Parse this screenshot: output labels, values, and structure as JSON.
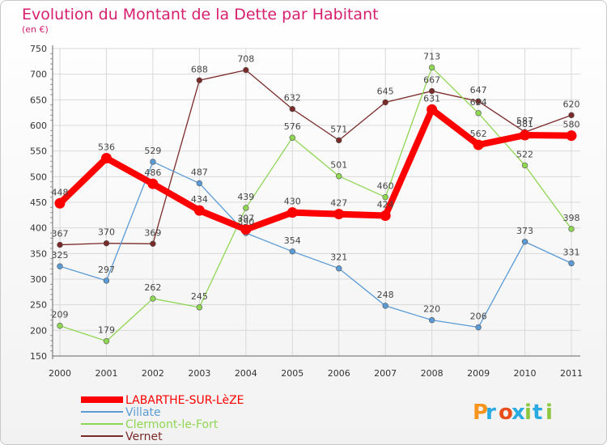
{
  "chart_data": {
    "type": "line",
    "title": "Evolution du Montant de la Dette par Habitant",
    "subtitle": "(en €)",
    "categories": [
      "2000",
      "2001",
      "2002",
      "2003",
      "2004",
      "2005",
      "2006",
      "2007",
      "2008",
      "2009",
      "2010",
      "2011"
    ],
    "ylim": [
      150,
      750
    ],
    "yticks": [
      150,
      200,
      250,
      300,
      350,
      400,
      450,
      500,
      550,
      600,
      650,
      700,
      750
    ],
    "grid": true,
    "legend_position": "bottom-left",
    "series": [
      {
        "name": "LABARTHE-SUR-LèZE",
        "color": "#ff0000",
        "values": [
          448,
          536,
          486,
          434,
          397,
          430,
          427,
          424,
          631,
          562,
          581,
          580
        ]
      },
      {
        "name": "Villate",
        "color": "#5b9bd5",
        "values": [
          325,
          297,
          529,
          487,
          390,
          354,
          321,
          248,
          220,
          206,
          373,
          331
        ]
      },
      {
        "name": "Clermont-le-Fort",
        "color": "#8fd653",
        "values": [
          209,
          179,
          262,
          245,
          439,
          576,
          501,
          460,
          713,
          624,
          522,
          398
        ]
      },
      {
        "name": "Vernet",
        "color": "#7b2a2a",
        "values": [
          367,
          370,
          369,
          688,
          708,
          632,
          571,
          645,
          667,
          647,
          587,
          620
        ]
      }
    ]
  },
  "brand": {
    "logo_text": "Proxiti",
    "colors": [
      "#f7941d",
      "#29abe2",
      "#e94e1b",
      "#29abe2",
      "#8dc63f",
      "#29abe2",
      "#8dc63f"
    ]
  },
  "colors": {
    "title": "#d6206f",
    "axis_text": "#333333",
    "label_text": "#444444"
  }
}
